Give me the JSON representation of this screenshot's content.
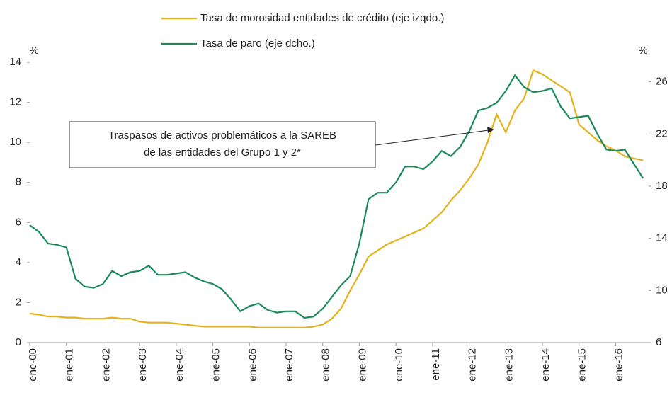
{
  "chart_data": {
    "type": "line",
    "ylabel": "%",
    "y2label": "%",
    "annotation": [
      "Traspasos de activos problemáticos a la SAREB",
      "de las entidades del Grupo 1 y 2*"
    ],
    "legend": "top",
    "xlim": [
      2000,
      2016.9
    ],
    "xticks": [
      {
        "value": 2000,
        "label": "ene-00"
      },
      {
        "value": 2001,
        "label": "ene-01"
      },
      {
        "value": 2002,
        "label": "ene-02"
      },
      {
        "value": 2003,
        "label": "ene-03"
      },
      {
        "value": 2004,
        "label": "ene-04"
      },
      {
        "value": 2005,
        "label": "ene-05"
      },
      {
        "value": 2006,
        "label": "ene-06"
      },
      {
        "value": 2007,
        "label": "ene-07"
      },
      {
        "value": 2008,
        "label": "ene-08"
      },
      {
        "value": 2009,
        "label": "ene-09"
      },
      {
        "value": 2010,
        "label": "ene-10"
      },
      {
        "value": 2011,
        "label": "ene-11"
      },
      {
        "value": 2012,
        "label": "ene-12"
      },
      {
        "value": 2013,
        "label": "ene-13"
      },
      {
        "value": 2014,
        "label": "ene-14"
      },
      {
        "value": 2015,
        "label": "ene-15"
      },
      {
        "value": 2016,
        "label": "ene-16"
      }
    ],
    "ylim": [
      0,
      14
    ],
    "yticks": [
      0,
      2,
      4,
      6,
      8,
      10,
      12,
      14
    ],
    "y2lim": [
      6,
      27.5
    ],
    "y2ticks": [
      6,
      10,
      14,
      18,
      22,
      26
    ],
    "x": [
      2000,
      2000.25,
      2000.5,
      2000.75,
      2001,
      2001.25,
      2001.5,
      2001.75,
      2002,
      2002.25,
      2002.5,
      2002.75,
      2003,
      2003.25,
      2003.5,
      2003.75,
      2004,
      2004.25,
      2004.5,
      2004.75,
      2005,
      2005.25,
      2005.5,
      2005.75,
      2006,
      2006.25,
      2006.5,
      2006.75,
      2007,
      2007.25,
      2007.5,
      2007.75,
      2008,
      2008.25,
      2008.5,
      2008.75,
      2009,
      2009.25,
      2009.5,
      2009.75,
      2010,
      2010.25,
      2010.5,
      2010.75,
      2011,
      2011.25,
      2011.5,
      2011.75,
      2012,
      2012.25,
      2012.5,
      2012.75,
      2013,
      2013.25,
      2013.5,
      2013.75,
      2014,
      2014.25,
      2014.5,
      2014.75,
      2015,
      2015.25,
      2015.5,
      2015.75,
      2016,
      2016.25,
      2016.5,
      2016.75
    ],
    "series": [
      {
        "name": "Tasa de morosidad entidades de crédito (eje izqdo.)",
        "color": "#e2b31c",
        "values": [
          1.45,
          1.4,
          1.3,
          1.3,
          1.25,
          1.25,
          1.2,
          1.2,
          1.2,
          1.25,
          1.2,
          1.2,
          1.05,
          1.0,
          1.0,
          1.0,
          0.95,
          0.9,
          0.85,
          0.8,
          0.8,
          0.8,
          0.8,
          0.8,
          0.8,
          0.75,
          0.75,
          0.75,
          0.75,
          0.75,
          0.75,
          0.8,
          0.9,
          1.2,
          1.7,
          2.6,
          3.4,
          4.3,
          4.6,
          4.9,
          5.1,
          5.3,
          5.5,
          5.7,
          6.1,
          6.5,
          7.1,
          7.6,
          8.2,
          8.9,
          10.0,
          11.4,
          10.5,
          11.6,
          12.2,
          13.6,
          13.4,
          13.1,
          12.8,
          12.5,
          10.9,
          10.5,
          10.1,
          9.8,
          9.6,
          9.3,
          9.2,
          9.1
        ]
      },
      {
        "name": "Tasa de paro (eje dcho.)",
        "color": "#1a8a5a",
        "axis": "y2",
        "values": [
          15.0,
          14.5,
          13.6,
          13.5,
          13.3,
          10.9,
          10.3,
          10.2,
          10.5,
          11.5,
          11.1,
          11.4,
          11.5,
          11.9,
          11.2,
          11.2,
          11.3,
          11.4,
          11.0,
          10.7,
          10.5,
          10.1,
          9.3,
          8.4,
          8.8,
          9.0,
          8.5,
          8.3,
          8.4,
          8.4,
          7.9,
          8.0,
          8.6,
          9.5,
          10.4,
          11.1,
          13.6,
          17.0,
          17.5,
          17.5,
          18.3,
          19.5,
          19.5,
          19.3,
          19.9,
          20.7,
          20.3,
          21.0,
          22.2,
          23.8,
          24.0,
          24.4,
          25.3,
          26.5,
          25.6,
          25.2,
          25.3,
          25.5,
          24.1,
          23.2,
          23.3,
          23.4,
          22.0,
          20.8,
          20.7,
          20.8,
          19.7,
          18.6
        ]
      }
    ]
  }
}
